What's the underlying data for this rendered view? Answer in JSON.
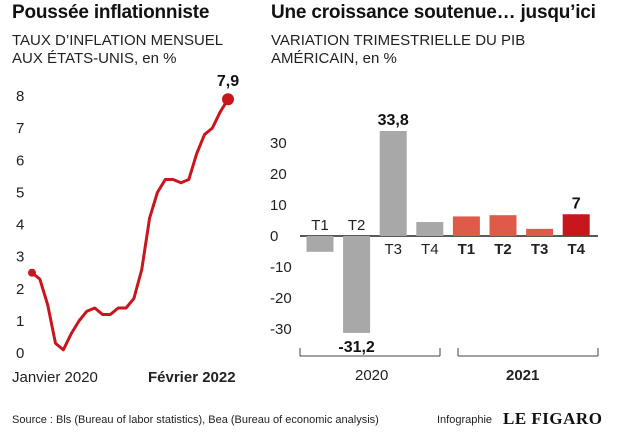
{
  "left": {
    "title": "Poussée inflationniste",
    "subtitle_line1": "TAUX D’INFLATION MENSUEL",
    "subtitle_line2": "AUX ÉTATS-UNIS, en %",
    "x_start_label": "Janvier 2020",
    "x_end_label": "Février 2022",
    "last_value_label": "7,9"
  },
  "right": {
    "title": "Une croissance soutenue… jusqu’ici",
    "subtitle_line1": "VARIATION TRIMESTRIELLE DU PIB",
    "subtitle_line2": "AMÉRICAIN, en %",
    "year_2020": "2020",
    "year_2021": "2021"
  },
  "footer": {
    "source": "Source : Bls (Bureau of labor statistics), Bea (Bureau of economic analysis)",
    "credit": "Infographie",
    "brand": "LE FIGARO"
  },
  "colors": {
    "line": "#c8161d",
    "bar_2020": "#a8a8a8",
    "bar_2021": "#de5b4a",
    "bar_highlight": "#c8161d"
  },
  "chart_data": [
    {
      "type": "line",
      "title": "Poussée inflationniste",
      "subtitle": "TAUX D’INFLATION MENSUEL AUX ÉTATS-UNIS, en %",
      "ylim": [
        0,
        8
      ],
      "yticks": [
        "0",
        "1",
        "2",
        "3",
        "4",
        "5",
        "6",
        "7",
        "8"
      ],
      "x_labels": [
        "Janvier 2020",
        "Février 2022"
      ],
      "grid": false,
      "series": [
        {
          "values": [
            2.5,
            2.3,
            1.5,
            0.3,
            0.1,
            0.6,
            1.0,
            1.3,
            1.4,
            1.2,
            1.2,
            1.4,
            1.4,
            1.7,
            2.6,
            4.2,
            5.0,
            5.4,
            5.4,
            5.3,
            5.4,
            6.2,
            6.8,
            7.0,
            7.5,
            7.9
          ]
        }
      ],
      "annotations": [
        {
          "label": "7,9",
          "point": "last"
        }
      ]
    },
    {
      "type": "bar",
      "title": "Une croissance soutenue… jusqu’ici",
      "subtitle": "VARIATION TRIMESTRIELLE DU PIB AMÉRICAIN, en %",
      "ylim": [
        -35,
        35
      ],
      "yticks": [
        "30",
        "20",
        "10",
        "0",
        "-10",
        "-20",
        "-30"
      ],
      "categories": [
        "T1",
        "T2",
        "T3",
        "T4",
        "T1",
        "T2",
        "T3",
        "T4"
      ],
      "groups": [
        {
          "label": "2020",
          "categories": [
            0,
            1,
            2,
            3
          ]
        },
        {
          "label": "2021",
          "categories": [
            4,
            5,
            6,
            7
          ]
        }
      ],
      "values": [
        -5.1,
        -31.2,
        33.8,
        4.5,
        6.3,
        6.7,
        2.3,
        7
      ],
      "data_labels": [
        {
          "index": 1,
          "text": "-31,2"
        },
        {
          "index": 2,
          "text": "33,8"
        },
        {
          "index": 7,
          "text": "7"
        }
      ],
      "grid": false
    }
  ]
}
